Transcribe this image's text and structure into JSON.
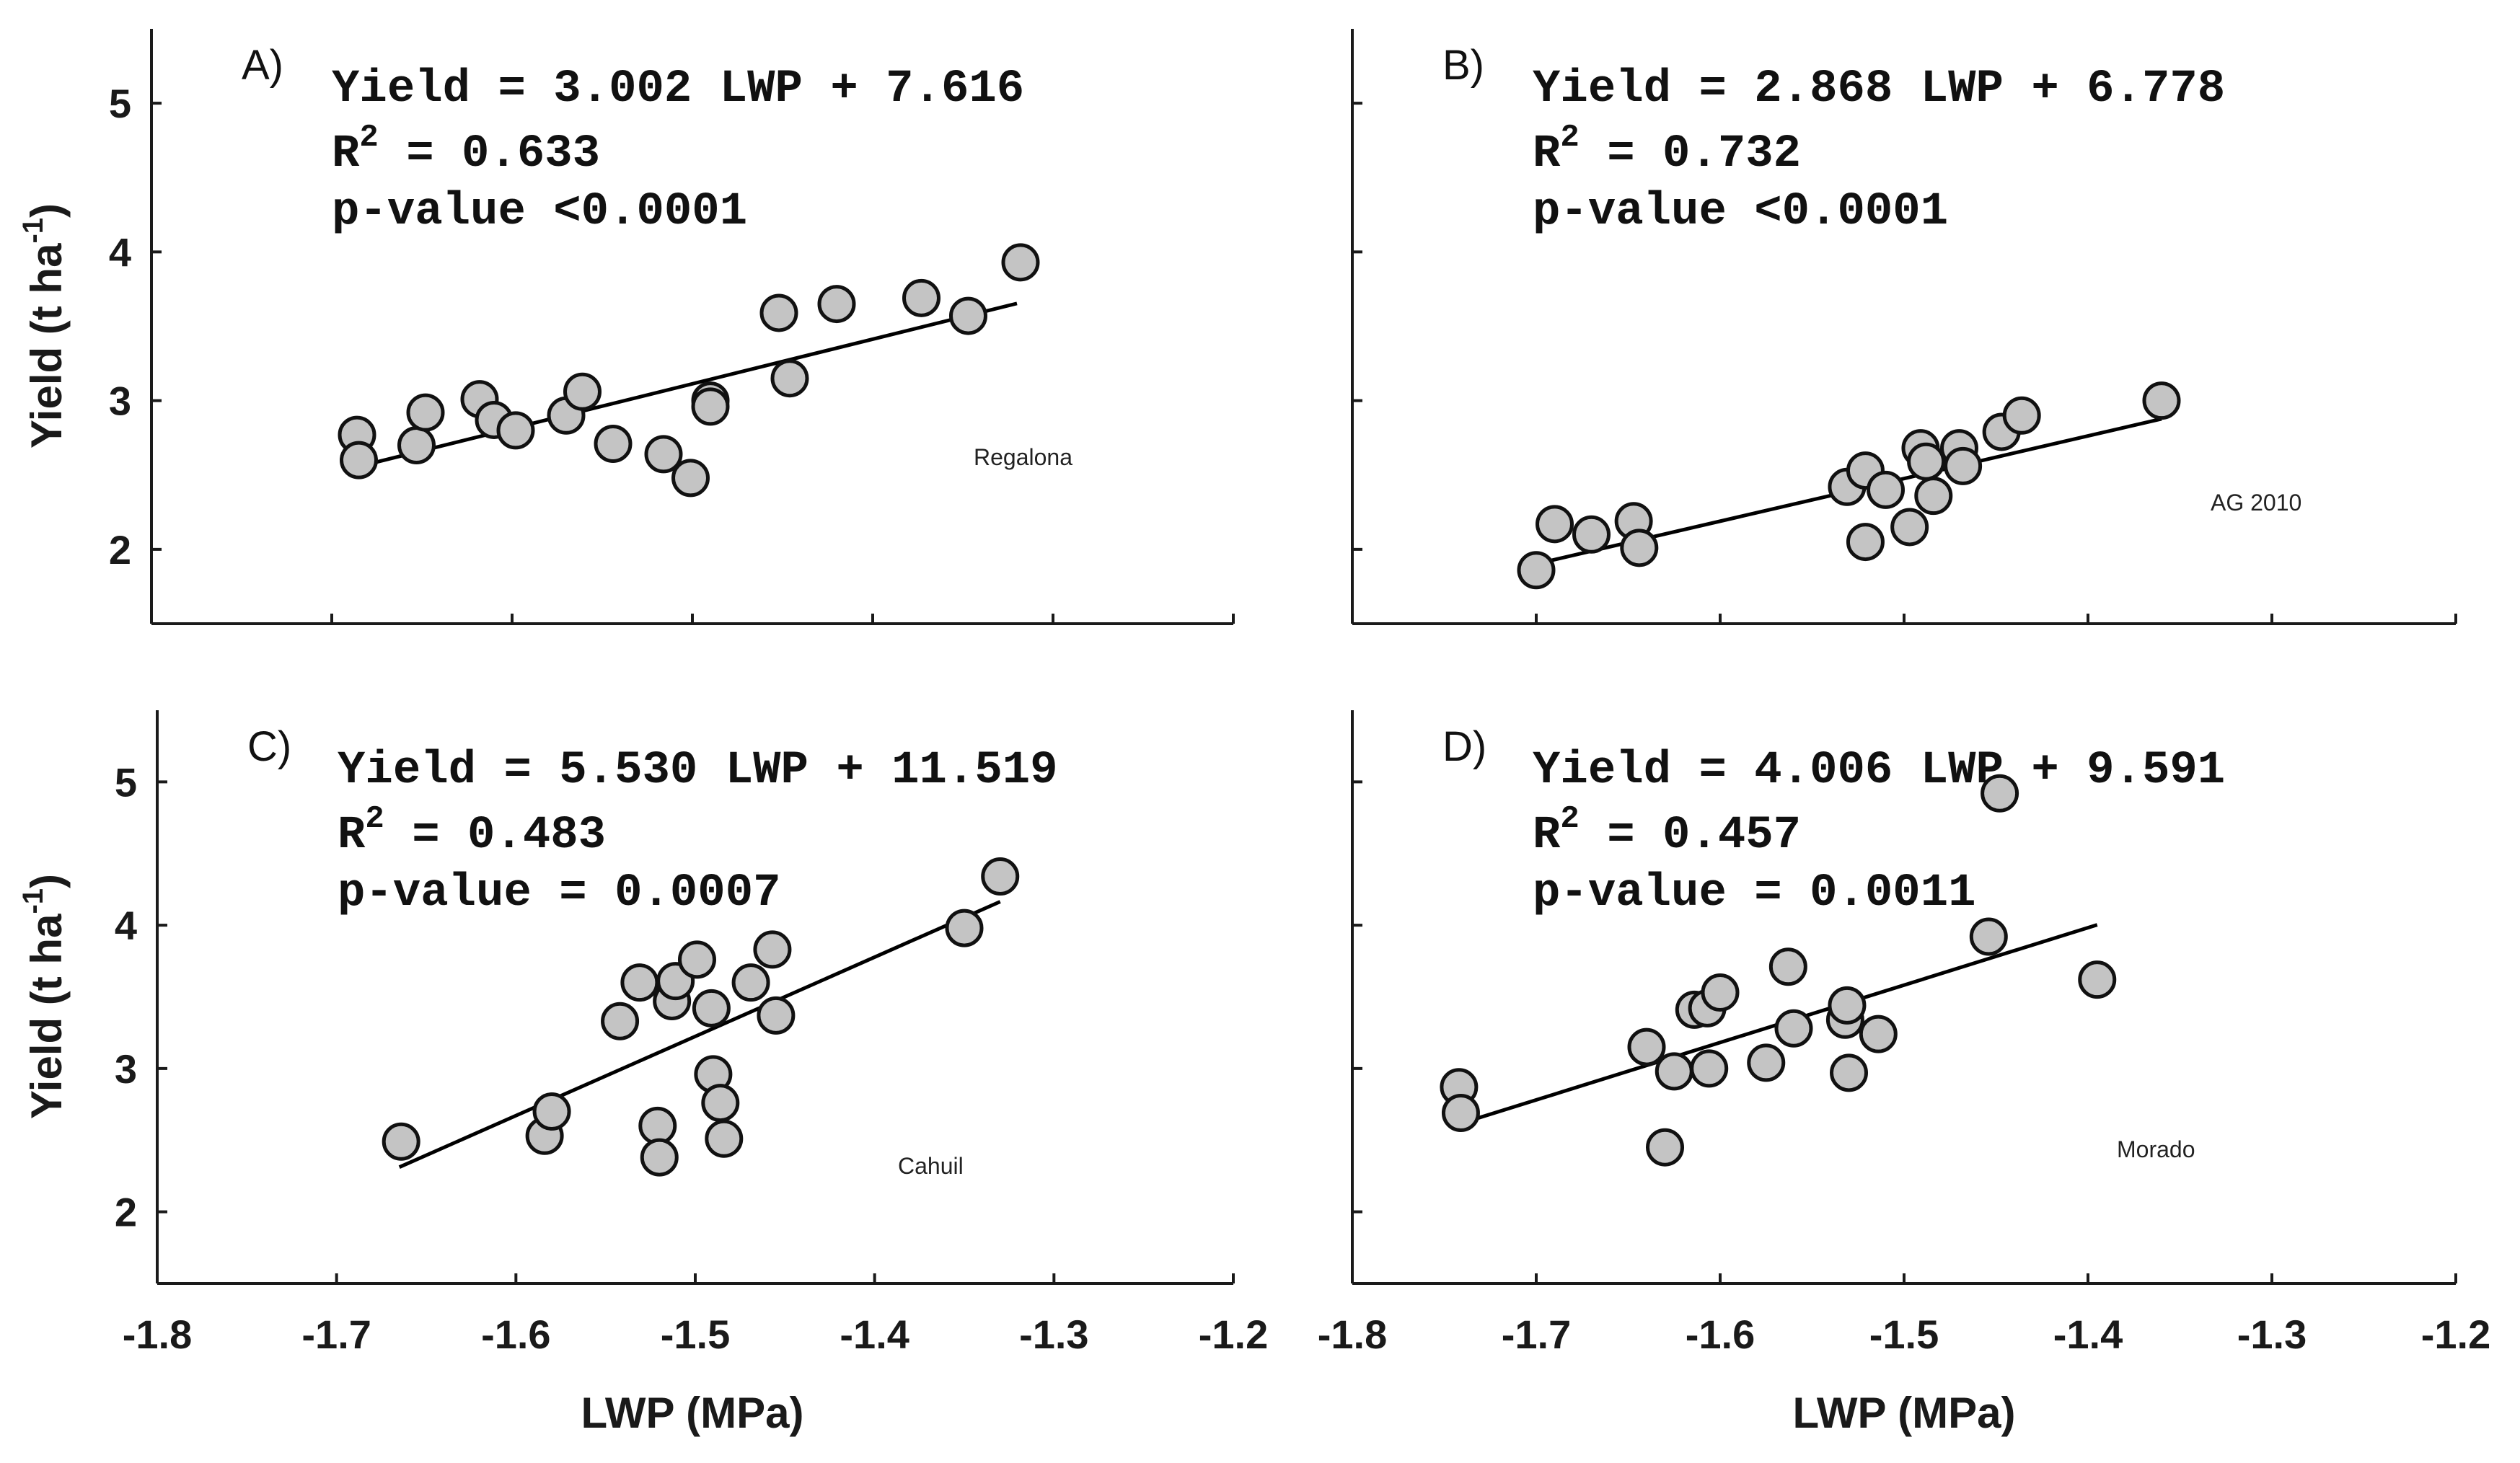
{
  "chart_data": [
    {
      "type": "scatter",
      "panel_label": "A)",
      "cultivar": "Regalona",
      "equation": "Yield = 3.002 LWP + 7.616",
      "r2_label": "R",
      "r2_exp": "2",
      "r2_value": " = 0.633",
      "pvalue": "p-value <0.0001",
      "fit": {
        "slope": 3.002,
        "intercept": 7.616,
        "x_range": [
          -1.685,
          -1.32
        ]
      },
      "xlim": [
        -1.8,
        -1.2
      ],
      "ylim": [
        1.5,
        5.5
      ],
      "points": [
        {
          "x": -1.686,
          "y": 2.77
        },
        {
          "x": -1.685,
          "y": 2.6
        },
        {
          "x": -1.653,
          "y": 2.7
        },
        {
          "x": -1.648,
          "y": 2.92
        },
        {
          "x": -1.618,
          "y": 3.01
        },
        {
          "x": -1.61,
          "y": 2.87
        },
        {
          "x": -1.598,
          "y": 2.8
        },
        {
          "x": -1.57,
          "y": 2.9
        },
        {
          "x": -1.561,
          "y": 3.06
        },
        {
          "x": -1.544,
          "y": 2.71
        },
        {
          "x": -1.516,
          "y": 2.64
        },
        {
          "x": -1.501,
          "y": 2.48
        },
        {
          "x": -1.49,
          "y": 3.0
        },
        {
          "x": -1.49,
          "y": 2.96
        },
        {
          "x": -1.452,
          "y": 3.59
        },
        {
          "x": -1.446,
          "y": 3.15
        },
        {
          "x": -1.42,
          "y": 3.65
        },
        {
          "x": -1.373,
          "y": 3.69
        },
        {
          "x": -1.347,
          "y": 3.57
        },
        {
          "x": -1.318,
          "y": 3.93
        }
      ]
    },
    {
      "type": "scatter",
      "panel_label": "B)",
      "cultivar": "AG 2010",
      "equation": "Yield = 2.868 LWP + 6.778",
      "r2_label": "R",
      "r2_exp": "2",
      "r2_value": " = 0.732",
      "pvalue": "p-value <0.0001",
      "fit": {
        "slope": 2.868,
        "intercept": 6.778,
        "x_range": [
          -1.7,
          -1.36
        ]
      },
      "xlim": [
        -1.8,
        -1.2
      ],
      "ylim": [
        1.5,
        5.5
      ],
      "points": [
        {
          "x": -1.7,
          "y": 1.86
        },
        {
          "x": -1.69,
          "y": 2.17
        },
        {
          "x": -1.67,
          "y": 2.1
        },
        {
          "x": -1.647,
          "y": 2.19
        },
        {
          "x": -1.644,
          "y": 2.01
        },
        {
          "x": -1.531,
          "y": 2.42
        },
        {
          "x": -1.521,
          "y": 2.53
        },
        {
          "x": -1.521,
          "y": 2.05
        },
        {
          "x": -1.51,
          "y": 2.4
        },
        {
          "x": -1.497,
          "y": 2.15
        },
        {
          "x": -1.491,
          "y": 2.68
        },
        {
          "x": -1.488,
          "y": 2.59
        },
        {
          "x": -1.484,
          "y": 2.36
        },
        {
          "x": -1.47,
          "y": 2.68
        },
        {
          "x": -1.468,
          "y": 2.56
        },
        {
          "x": -1.447,
          "y": 2.79
        },
        {
          "x": -1.436,
          "y": 2.9
        },
        {
          "x": -1.36,
          "y": 3.0
        }
      ]
    },
    {
      "type": "scatter",
      "panel_label": "C)",
      "cultivar": "Cahuil",
      "equation": "Yield = 5.530 LWP + 11.519",
      "r2_label": "R",
      "r2_exp": "2",
      "r2_value": " = 0.483",
      "pvalue": "p-value = 0.0007",
      "fit": {
        "slope": 5.53,
        "intercept": 11.519,
        "x_range": [
          -1.665,
          -1.33
        ]
      },
      "xlim": [
        -1.8,
        -1.2
      ],
      "ylim": [
        1.5,
        5.5
      ],
      "points": [
        {
          "x": -1.664,
          "y": 2.49
        },
        {
          "x": -1.584,
          "y": 2.53
        },
        {
          "x": -1.58,
          "y": 2.7
        },
        {
          "x": -1.542,
          "y": 3.33
        },
        {
          "x": -1.531,
          "y": 3.6
        },
        {
          "x": -1.521,
          "y": 2.6
        },
        {
          "x": -1.52,
          "y": 2.38
        },
        {
          "x": -1.513,
          "y": 3.47
        },
        {
          "x": -1.511,
          "y": 3.61
        },
        {
          "x": -1.499,
          "y": 3.76
        },
        {
          "x": -1.491,
          "y": 3.42
        },
        {
          "x": -1.49,
          "y": 2.96
        },
        {
          "x": -1.486,
          "y": 2.76
        },
        {
          "x": -1.484,
          "y": 2.51
        },
        {
          "x": -1.469,
          "y": 3.6
        },
        {
          "x": -1.457,
          "y": 3.83
        },
        {
          "x": -1.455,
          "y": 3.37
        },
        {
          "x": -1.35,
          "y": 3.98
        },
        {
          "x": -1.33,
          "y": 4.34
        }
      ]
    },
    {
      "type": "scatter",
      "panel_label": "D)",
      "cultivar": "Morado",
      "equation": "Yield = 4.006 LWP + 9.591",
      "r2_label": "R",
      "r2_exp": "2",
      "r2_value": " = 0.457",
      "pvalue": "p-value = 0.0011",
      "fit": {
        "slope": 4.006,
        "intercept": 9.591,
        "x_range": [
          -1.74,
          -1.395
        ]
      },
      "xlim": [
        -1.8,
        -1.2
      ],
      "ylim": [
        1.5,
        5.5
      ],
      "points": [
        {
          "x": -1.742,
          "y": 2.87
        },
        {
          "x": -1.741,
          "y": 2.69
        },
        {
          "x": -1.64,
          "y": 3.15
        },
        {
          "x": -1.63,
          "y": 2.45
        },
        {
          "x": -1.625,
          "y": 2.98
        },
        {
          "x": -1.614,
          "y": 3.41
        },
        {
          "x": -1.607,
          "y": 3.42
        },
        {
          "x": -1.606,
          "y": 3.0
        },
        {
          "x": -1.6,
          "y": 3.53
        },
        {
          "x": -1.575,
          "y": 3.04
        },
        {
          "x": -1.563,
          "y": 3.71
        },
        {
          "x": -1.56,
          "y": 3.28
        },
        {
          "x": -1.532,
          "y": 3.34
        },
        {
          "x": -1.531,
          "y": 3.44
        },
        {
          "x": -1.53,
          "y": 2.97
        },
        {
          "x": -1.514,
          "y": 3.24
        },
        {
          "x": -1.454,
          "y": 3.92
        },
        {
          "x": -1.448,
          "y": 4.92
        },
        {
          "x": -1.395,
          "y": 3.62
        }
      ]
    }
  ],
  "axes": {
    "ylabel": "Yield (t ha",
    "ylabel_exp": "-1",
    "ylabel_close": ")",
    "xlabel": "LWP (MPa)",
    "x_ticks": [
      -1.8,
      -1.7,
      -1.6,
      -1.5,
      -1.4,
      -1.3,
      -1.2
    ],
    "x_tick_labels": [
      "-1.8",
      "-1.7",
      "-1.6",
      "-1.5",
      "-1.4",
      "-1.3",
      "-1.2"
    ],
    "y_ticks": [
      2,
      3,
      4,
      5
    ],
    "y_tick_labels": [
      "2",
      "3",
      "4",
      "5"
    ]
  }
}
